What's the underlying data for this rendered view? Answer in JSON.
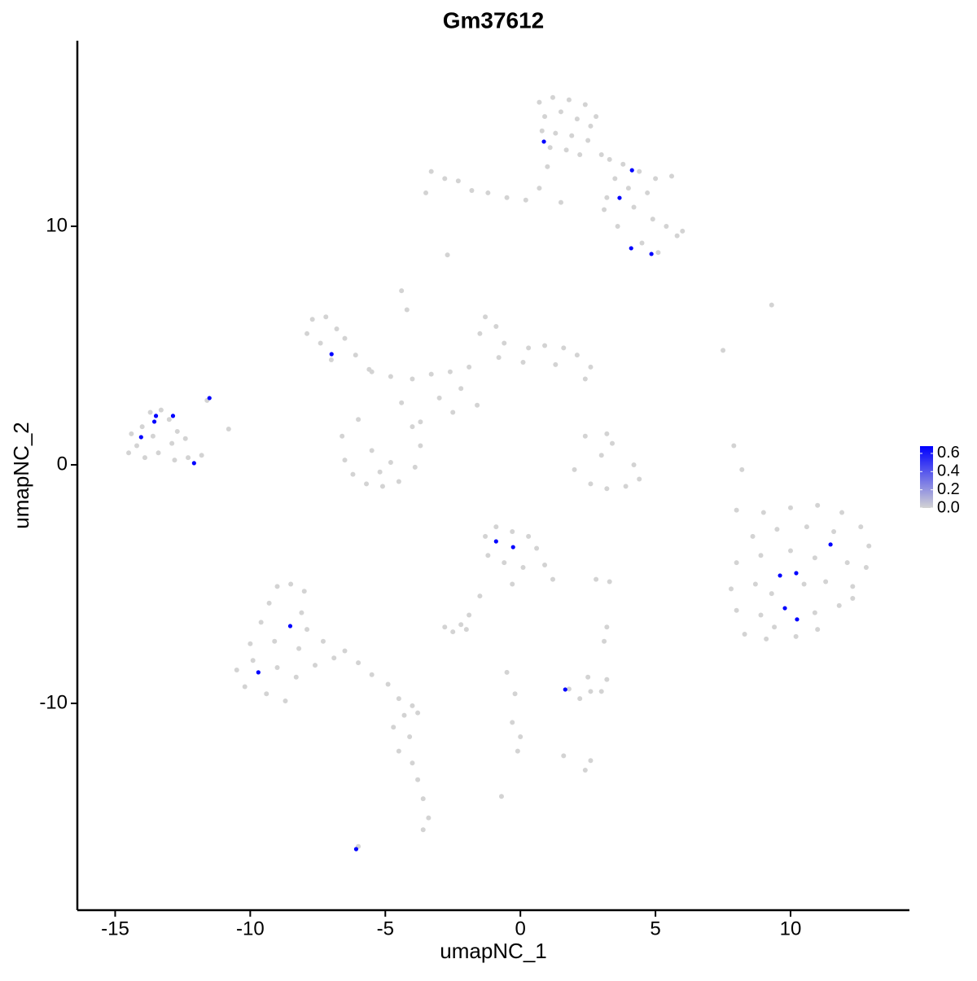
{
  "chart_data": {
    "type": "scatter",
    "title": "Gm37612",
    "x_label": "umapNC_1",
    "y_label": "umapNC_2",
    "xlim": [
      -16.4,
      14.4
    ],
    "ylim": [
      -18.67,
      17.78
    ],
    "xticks": [
      -15,
      -10,
      -5,
      0,
      5,
      10
    ],
    "yticks": [
      -10,
      0,
      10
    ],
    "grid": false,
    "series": [
      {
        "color": "#d3d3d3",
        "points": [
          [
            0.7,
            15.2
          ],
          [
            1.2,
            15.4
          ],
          [
            1.8,
            15.3
          ],
          [
            2.4,
            15.1
          ],
          [
            0.9,
            14.6
          ],
          [
            1.5,
            14.8
          ],
          [
            2.1,
            14.5
          ],
          [
            2.6,
            14.2
          ],
          [
            0.8,
            14.0
          ],
          [
            1.3,
            13.9
          ],
          [
            1.9,
            13.8
          ],
          [
            2.5,
            13.6
          ],
          [
            1.1,
            13.3
          ],
          [
            1.7,
            13.2
          ],
          [
            2.2,
            13.0
          ],
          [
            3.0,
            13.0
          ],
          [
            2.8,
            14.6
          ],
          [
            3.3,
            12.8
          ],
          [
            3.8,
            12.6
          ],
          [
            4.4,
            12.3
          ],
          [
            5.0,
            12.0
          ],
          [
            5.6,
            12.1
          ],
          [
            3.5,
            12.0
          ],
          [
            4.0,
            11.6
          ],
          [
            4.7,
            11.4
          ],
          [
            3.2,
            11.2
          ],
          [
            4.2,
            10.8
          ],
          [
            4.9,
            10.3
          ],
          [
            5.4,
            10.0
          ],
          [
            5.8,
            9.6
          ],
          [
            6.0,
            9.8
          ],
          [
            3.6,
            10.0
          ],
          [
            4.5,
            9.3
          ],
          [
            5.1,
            8.9
          ],
          [
            3.1,
            10.7
          ],
          [
            -3.3,
            12.3
          ],
          [
            -2.8,
            12.0
          ],
          [
            -2.3,
            11.9
          ],
          [
            -1.8,
            11.5
          ],
          [
            -1.2,
            11.4
          ],
          [
            -0.5,
            11.2
          ],
          [
            0.2,
            11.1
          ],
          [
            0.7,
            11.6
          ],
          [
            1.0,
            12.5
          ],
          [
            -3.5,
            11.4
          ],
          [
            1.5,
            11.0
          ],
          [
            -2.7,
            8.8
          ],
          [
            -4.4,
            7.3
          ],
          [
            -4.2,
            6.5
          ],
          [
            9.3,
            6.7
          ],
          [
            7.5,
            4.8
          ],
          [
            8.2,
            -0.2
          ],
          [
            8.0,
            -1.9
          ],
          [
            7.9,
            0.8
          ],
          [
            -7.7,
            6.1
          ],
          [
            -7.2,
            6.2
          ],
          [
            -6.8,
            5.7
          ],
          [
            -7.9,
            5.5
          ],
          [
            -7.4,
            5.1
          ],
          [
            -6.5,
            5.3
          ],
          [
            -7.0,
            4.4
          ],
          [
            -6.1,
            4.6
          ],
          [
            -5.6,
            4.0
          ],
          [
            -1.3,
            6.2
          ],
          [
            -0.9,
            5.8
          ],
          [
            -1.5,
            5.5
          ],
          [
            -0.6,
            5.1
          ],
          [
            0.3,
            4.9
          ],
          [
            0.9,
            5.0
          ],
          [
            1.6,
            4.9
          ],
          [
            2.1,
            4.6
          ],
          [
            2.6,
            4.1
          ],
          [
            1.3,
            4.2
          ],
          [
            0.1,
            4.3
          ],
          [
            -0.8,
            4.5
          ],
          [
            -1.9,
            4.1
          ],
          [
            -2.6,
            3.9
          ],
          [
            -3.3,
            3.8
          ],
          [
            -4.0,
            3.6
          ],
          [
            -4.8,
            3.7
          ],
          [
            -5.5,
            3.9
          ],
          [
            -2.2,
            3.2
          ],
          [
            -3.0,
            2.8
          ],
          [
            -2.5,
            2.2
          ],
          [
            -1.6,
            2.5
          ],
          [
            2.4,
            3.6
          ],
          [
            -4.4,
            2.6
          ],
          [
            -6.6,
            1.2
          ],
          [
            -6.5,
            0.2
          ],
          [
            -6.2,
            -0.4
          ],
          [
            -5.7,
            -0.8
          ],
          [
            -5.1,
            -0.9
          ],
          [
            -4.5,
            -0.7
          ],
          [
            -3.9,
            -0.1
          ],
          [
            -3.7,
            0.8
          ],
          [
            -4.0,
            1.6
          ],
          [
            -5.5,
            0.6
          ],
          [
            -4.8,
            0.1
          ],
          [
            -6.0,
            1.9
          ],
          [
            -3.7,
            1.8
          ],
          [
            -5.2,
            -0.3
          ],
          [
            2.0,
            -0.2
          ],
          [
            2.6,
            -0.8
          ],
          [
            3.2,
            -1.0
          ],
          [
            3.9,
            -0.9
          ],
          [
            4.4,
            -0.6
          ],
          [
            3.0,
            0.4
          ],
          [
            3.4,
            0.9
          ],
          [
            3.2,
            1.3
          ],
          [
            4.2,
            0.0
          ],
          [
            2.4,
            1.2
          ],
          [
            -1.3,
            -3.0
          ],
          [
            -0.9,
            -2.6
          ],
          [
            -0.3,
            -2.8
          ],
          [
            0.3,
            -3.0
          ],
          [
            0.6,
            -3.5
          ],
          [
            0.9,
            -4.2
          ],
          [
            1.2,
            -4.8
          ],
          [
            -1.2,
            -3.8
          ],
          [
            -0.6,
            -4.1
          ],
          [
            0.1,
            -4.3
          ],
          [
            -0.3,
            -5.0
          ],
          [
            -1.5,
            -5.5
          ],
          [
            -1.9,
            -6.3
          ],
          [
            2.8,
            -4.8
          ],
          [
            3.3,
            -4.9
          ],
          [
            9.0,
            -2.0
          ],
          [
            10.0,
            -1.8
          ],
          [
            11.0,
            -1.7
          ],
          [
            11.9,
            -2.0
          ],
          [
            12.6,
            -2.6
          ],
          [
            12.9,
            -3.4
          ],
          [
            8.6,
            -3.0
          ],
          [
            9.5,
            -2.7
          ],
          [
            10.6,
            -2.6
          ],
          [
            11.6,
            -2.8
          ],
          [
            8.0,
            -4.1
          ],
          [
            8.9,
            -3.8
          ],
          [
            10.0,
            -3.6
          ],
          [
            10.9,
            -3.9
          ],
          [
            12.1,
            -4.1
          ],
          [
            12.8,
            -4.3
          ],
          [
            7.8,
            -5.2
          ],
          [
            8.7,
            -5.0
          ],
          [
            9.3,
            -5.4
          ],
          [
            10.5,
            -5.0
          ],
          [
            11.3,
            -4.9
          ],
          [
            12.3,
            -5.1
          ],
          [
            8.0,
            -6.1
          ],
          [
            8.9,
            -6.3
          ],
          [
            9.4,
            -6.8
          ],
          [
            10.9,
            -6.2
          ],
          [
            11.8,
            -5.9
          ],
          [
            8.3,
            -7.1
          ],
          [
            9.1,
            -7.3
          ],
          [
            10.2,
            -7.2
          ],
          [
            11.0,
            -6.9
          ],
          [
            12.3,
            -5.6
          ],
          [
            -9.0,
            -5.1
          ],
          [
            -8.5,
            -5.0
          ],
          [
            -8.0,
            -5.3
          ],
          [
            -9.3,
            -5.8
          ],
          [
            -8.1,
            -6.2
          ],
          [
            -9.6,
            -6.6
          ],
          [
            -7.9,
            -6.9
          ],
          [
            -10.0,
            -7.5
          ],
          [
            -9.1,
            -7.4
          ],
          [
            -8.2,
            -7.7
          ],
          [
            -7.3,
            -7.4
          ],
          [
            -10.5,
            -8.6
          ],
          [
            -9.9,
            -8.2
          ],
          [
            -9.0,
            -8.5
          ],
          [
            -8.3,
            -8.9
          ],
          [
            -7.6,
            -8.4
          ],
          [
            -10.2,
            -9.3
          ],
          [
            -9.4,
            -9.6
          ],
          [
            -8.7,
            -9.9
          ],
          [
            -6.9,
            -8.1
          ],
          [
            -6.5,
            -7.8
          ],
          [
            -6.0,
            -8.3
          ],
          [
            -5.5,
            -8.8
          ],
          [
            -4.9,
            -9.2
          ],
          [
            -4.5,
            -9.8
          ],
          [
            -4.0,
            -10.1
          ],
          [
            -3.8,
            -10.4
          ],
          [
            -4.3,
            -10.5
          ],
          [
            -4.7,
            -11.0
          ],
          [
            -4.5,
            -12.0
          ],
          [
            -4.0,
            -12.5
          ],
          [
            -3.8,
            -13.2
          ],
          [
            -3.6,
            -14.0
          ],
          [
            -3.4,
            -14.8
          ],
          [
            -3.6,
            -15.3
          ],
          [
            -6.0,
            -16.0
          ],
          [
            1.8,
            -9.4
          ],
          [
            2.2,
            -9.8
          ],
          [
            2.6,
            -9.5
          ],
          [
            3.0,
            -9.5
          ],
          [
            3.2,
            -9.0
          ],
          [
            2.5,
            -8.9
          ],
          [
            2.4,
            -12.8
          ],
          [
            2.6,
            -12.4
          ],
          [
            -2.8,
            -6.8
          ],
          [
            -2.5,
            -7.0
          ],
          [
            -2.0,
            -6.9
          ],
          [
            -2.2,
            -6.7
          ],
          [
            -0.5,
            -8.7
          ],
          [
            -0.2,
            -9.6
          ],
          [
            -0.3,
            -10.8
          ],
          [
            -0.1,
            -12.0
          ],
          [
            0.0,
            -11.4
          ],
          [
            1.6,
            -12.2
          ],
          [
            3.2,
            -6.8
          ],
          [
            3.1,
            -7.4
          ],
          [
            -0.7,
            -13.9
          ],
          [
            -4.1,
            -11.4
          ],
          [
            -14.4,
            1.3
          ],
          [
            -14.2,
            0.8
          ],
          [
            -14.0,
            1.6
          ],
          [
            -13.7,
            2.2
          ],
          [
            -13.3,
            2.3
          ],
          [
            -13.0,
            1.9
          ],
          [
            -12.7,
            1.4
          ],
          [
            -12.9,
            0.9
          ],
          [
            -13.4,
            0.5
          ],
          [
            -13.9,
            0.3
          ],
          [
            -14.5,
            0.5
          ],
          [
            -12.4,
            1.1
          ],
          [
            -12.3,
            0.3
          ],
          [
            -13.6,
            1.2
          ],
          [
            -12.8,
            0.2
          ],
          [
            -11.8,
            0.4
          ],
          [
            -10.8,
            1.5
          ],
          [
            -11.6,
            2.7
          ]
        ]
      },
      {
        "color": "#0000ff",
        "points": [
          [
            0.87,
            13.55
          ],
          [
            4.13,
            12.35
          ],
          [
            3.67,
            11.19
          ],
          [
            4.1,
            9.08
          ],
          [
            4.85,
            8.84
          ],
          [
            -6.99,
            4.64
          ],
          [
            -11.51,
            2.8
          ],
          [
            -13.49,
            2.05
          ],
          [
            -12.86,
            2.05
          ],
          [
            -13.55,
            1.81
          ],
          [
            -14.04,
            1.16
          ],
          [
            -12.08,
            0.07
          ],
          [
            -0.9,
            -3.21
          ],
          [
            -0.27,
            -3.45
          ],
          [
            11.48,
            -3.34
          ],
          [
            9.61,
            -4.64
          ],
          [
            10.21,
            -4.54
          ],
          [
            -8.52,
            -6.76
          ],
          [
            9.79,
            -6.01
          ],
          [
            10.24,
            -6.48
          ],
          [
            -9.7,
            -8.7
          ],
          [
            1.66,
            -9.42
          ],
          [
            -6.08,
            -16.11
          ]
        ]
      }
    ],
    "colorbar": {
      "lim": [
        0,
        0.68
      ],
      "low": "#d3d3d3",
      "high": "#0000ff",
      "ticks": [
        {
          "value": 0,
          "label": "0.0"
        },
        {
          "value": 0.2,
          "label": "0.2"
        },
        {
          "value": 0.4,
          "label": "0.4"
        },
        {
          "value": 0.6,
          "label": "0.6"
        }
      ]
    }
  }
}
